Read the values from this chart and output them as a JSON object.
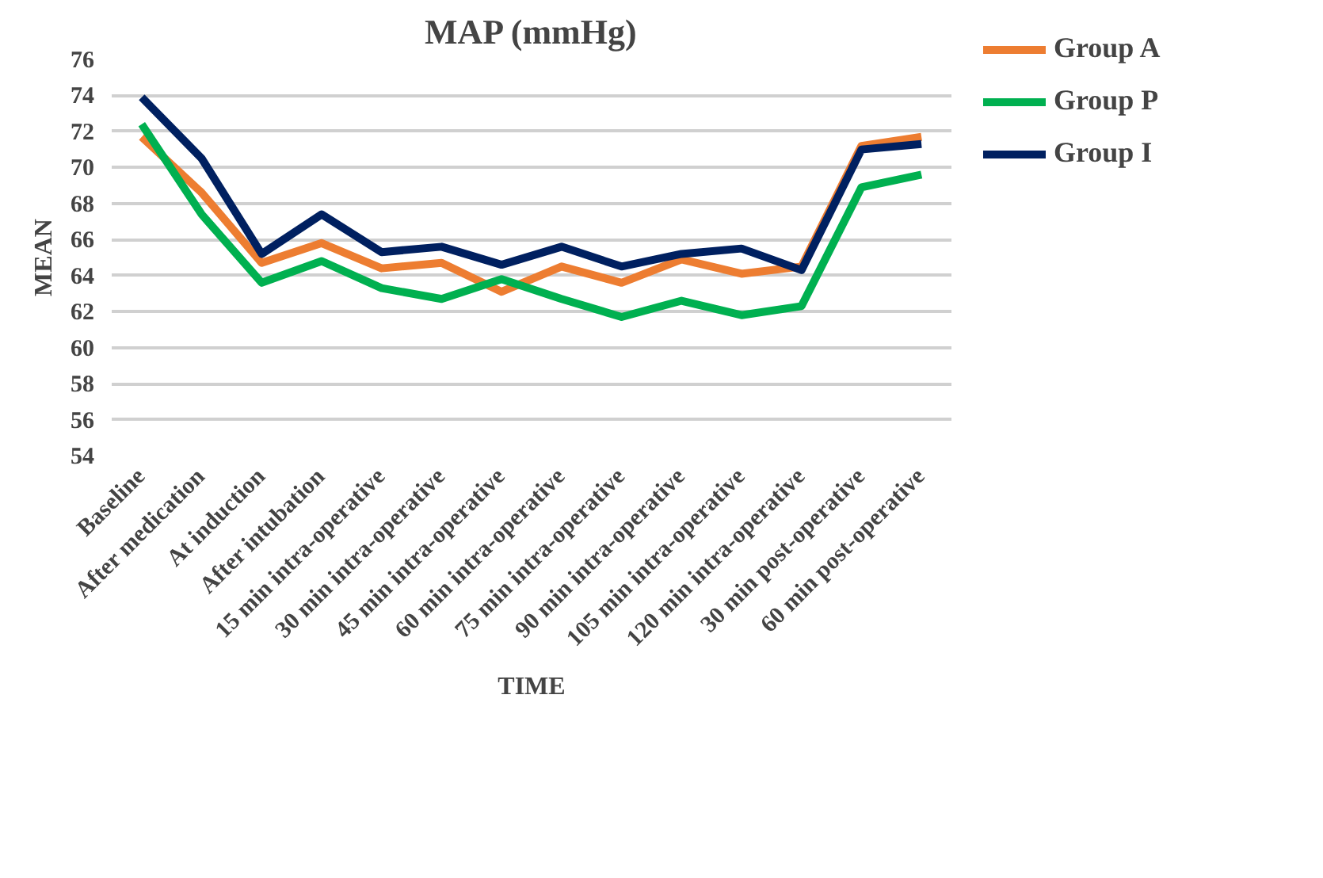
{
  "chart_data": {
    "type": "line",
    "title": "MAP (mmHg)",
    "xlabel": "TIME",
    "ylabel": "MEAN",
    "categories": [
      "Baseline",
      "After medication",
      "At induction",
      "After intubation",
      "15 min intra-operative",
      "30 min intra-operative",
      "45 min intra-operative",
      "60 min intra-operative",
      "75 min intra-operative",
      "90 min intra-operative",
      "105 min intra-operative",
      "120 min intra-operative",
      "30 min post-operative",
      "60 min post-operative"
    ],
    "series": [
      {
        "name": "Group A",
        "color": "#ed7d31",
        "values": [
          71.7,
          68.6,
          64.7,
          65.8,
          64.4,
          64.7,
          63.1,
          64.5,
          63.6,
          64.9,
          64.1,
          64.5,
          71.2,
          71.7
        ]
      },
      {
        "name": "Group P",
        "color": "#00b050",
        "values": [
          72.4,
          67.4,
          63.6,
          64.8,
          63.3,
          62.7,
          63.8,
          62.7,
          61.7,
          62.6,
          61.8,
          62.3,
          68.9,
          69.6
        ]
      },
      {
        "name": "Group I",
        "color": "#002060",
        "values": [
          73.9,
          70.5,
          65.2,
          67.4,
          65.3,
          65.6,
          64.6,
          65.6,
          64.5,
          65.2,
          65.5,
          64.3,
          71.0,
          71.3
        ]
      }
    ],
    "ylim": [
      54,
      76
    ],
    "yticks": [
      54,
      56,
      58,
      60,
      62,
      64,
      66,
      68,
      70,
      72,
      74,
      76
    ],
    "grid": "y",
    "legend": "right",
    "marker": "none",
    "line_style": "solid"
  }
}
